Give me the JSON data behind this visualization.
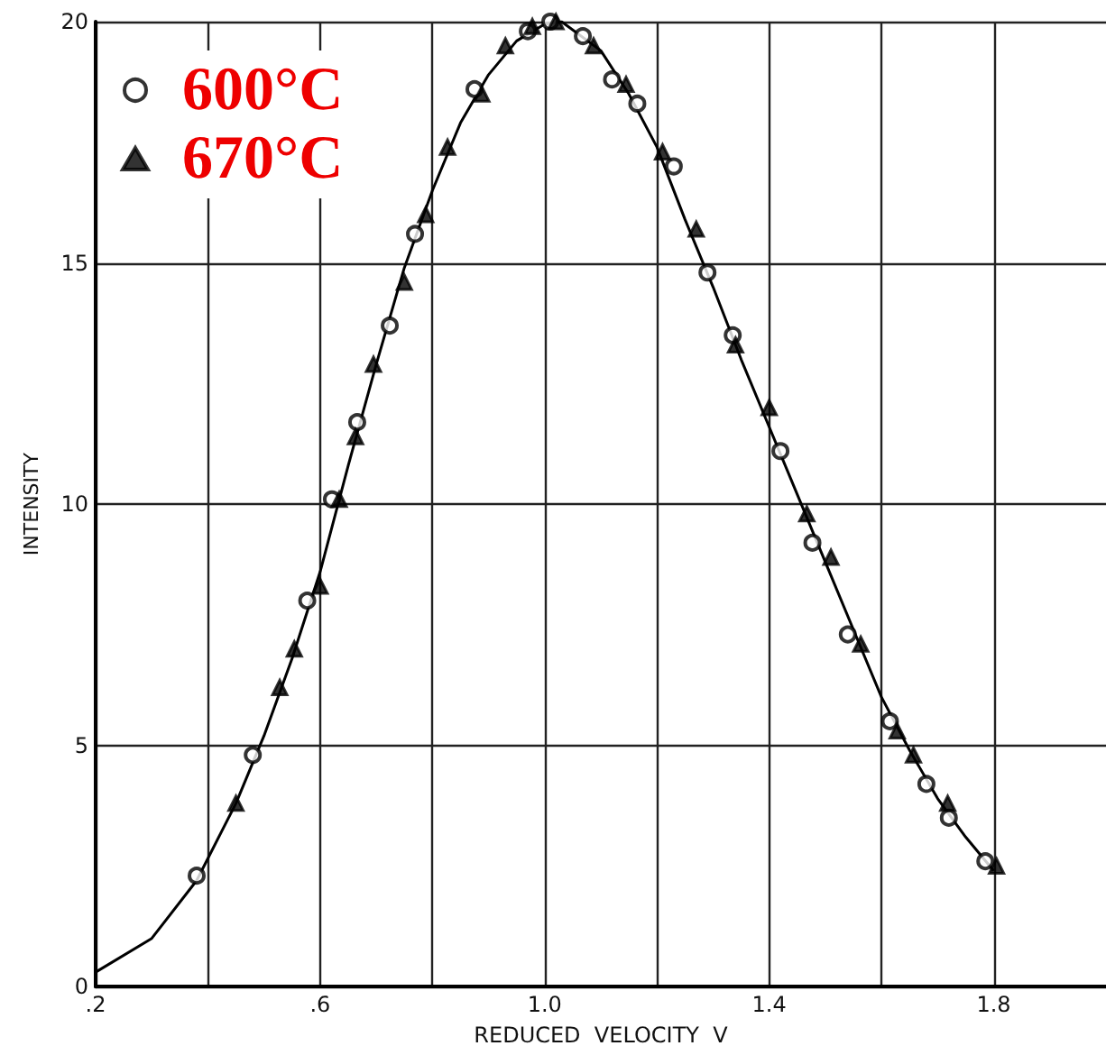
{
  "chart_data": {
    "type": "scatter",
    "xlabel": "REDUCED  VELOCITY  V",
    "ylabel": "INTENSITY",
    "xlim": [
      0.2,
      2.0
    ],
    "xticks": [
      {
        "value": 0.2,
        "label": ".2"
      },
      {
        "value": 0.4,
        "label": null
      },
      {
        "value": 0.6,
        "label": ".6"
      },
      {
        "value": 0.8,
        "label": null
      },
      {
        "value": 1.0,
        "label": "1.0"
      },
      {
        "value": 1.2,
        "label": null
      },
      {
        "value": 1.4,
        "label": "1.4"
      },
      {
        "value": 1.6,
        "label": null
      },
      {
        "value": 1.8,
        "label": "1.8"
      }
    ],
    "ylim": [
      0,
      20
    ],
    "yticks": [
      0,
      5,
      10,
      15,
      20
    ],
    "grid": true,
    "legend": "top left",
    "series": [
      {
        "name": "600°C",
        "color": "#000000",
        "marker": "circle",
        "x": [
          0.38,
          0.48,
          0.577,
          0.621,
          0.666,
          0.724,
          0.769,
          0.875,
          0.97,
          1.01,
          1.068,
          1.12,
          1.165,
          1.23,
          1.29,
          1.335,
          1.42,
          1.477,
          1.54,
          1.615,
          1.68,
          1.72,
          1.785
        ],
        "values": [
          2.3,
          4.8,
          8.0,
          10.1,
          11.7,
          13.7,
          15.6,
          18.6,
          19.8,
          20.0,
          19.7,
          18.8,
          18.3,
          17.0,
          14.8,
          13.5,
          11.1,
          9.2,
          7.3,
          5.5,
          4.2,
          3.5,
          2.6
        ]
      },
      {
        "name": "670°C",
        "color": "#000000",
        "marker": "triangle",
        "x": [
          0.45,
          0.528,
          0.554,
          0.6,
          0.634,
          0.663,
          0.695,
          0.75,
          0.788,
          0.827,
          0.888,
          0.93,
          0.978,
          1.02,
          1.087,
          1.145,
          1.21,
          1.27,
          1.34,
          1.4,
          1.467,
          1.51,
          1.563,
          1.628,
          1.657,
          1.718,
          1.805
        ],
        "values": [
          3.8,
          6.2,
          7.0,
          8.3,
          10.1,
          11.4,
          12.9,
          14.6,
          16.0,
          17.4,
          18.5,
          19.5,
          19.9,
          20.0,
          19.5,
          18.7,
          17.3,
          15.7,
          13.3,
          12.0,
          9.8,
          8.9,
          7.1,
          5.3,
          4.8,
          3.8,
          2.5
        ]
      },
      {
        "type": "line",
        "color": "#000000",
        "marker": "none",
        "x": [
          0.2,
          0.3,
          0.38,
          0.45,
          0.5,
          0.55,
          0.6,
          0.65,
          0.7,
          0.75,
          0.8,
          0.85,
          0.9,
          0.95,
          1.0,
          1.03,
          1.1,
          1.15,
          1.2,
          1.25,
          1.3,
          1.35,
          1.4,
          1.45,
          1.5,
          1.55,
          1.6,
          1.65,
          1.7,
          1.75,
          1.8
        ],
        "values": [
          0.3,
          1.0,
          2.2,
          3.8,
          5.2,
          6.8,
          8.6,
          10.8,
          12.9,
          14.9,
          16.5,
          17.9,
          18.9,
          19.6,
          19.95,
          20.0,
          19.4,
          18.5,
          17.4,
          15.9,
          14.5,
          13.0,
          11.6,
          10.2,
          8.8,
          7.4,
          6.0,
          4.9,
          3.9,
          3.1,
          2.4
        ]
      }
    ]
  }
}
